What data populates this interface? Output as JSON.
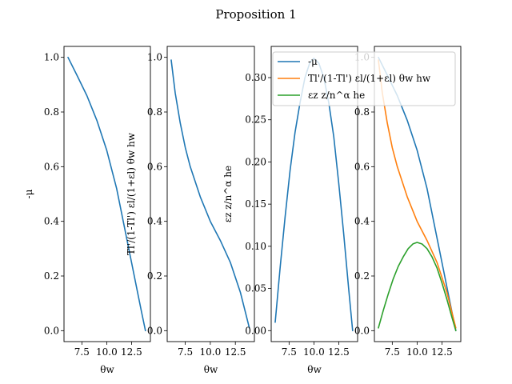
{
  "figure": {
    "title": "Proposition 1"
  },
  "chart_data": [
    {
      "type": "line",
      "xlabel": "θw",
      "ylabel": "-μ",
      "xlim": [
        5.7,
        14.4
      ],
      "ylim": [
        -0.04,
        1.04
      ],
      "xticks": [
        7.5,
        10.0,
        12.5
      ],
      "xticklabels": [
        "7.5",
        "10.0",
        "12.5"
      ],
      "yticks": [
        0.0,
        0.2,
        0.4,
        0.6,
        0.8,
        1.0
      ],
      "yticklabels": [
        "0.0",
        "0.2",
        "0.4",
        "0.6",
        "0.8",
        "1.0"
      ],
      "series": [
        {
          "name": "-μ",
          "color": "#1f77b4",
          "x": [
            6.1,
            7.0,
            8.0,
            9.0,
            10.0,
            11.0,
            12.0,
            12.5,
            13.0,
            13.5,
            13.9
          ],
          "y": [
            1.0,
            0.935,
            0.86,
            0.77,
            0.66,
            0.52,
            0.34,
            0.25,
            0.16,
            0.07,
            0.0
          ]
        }
      ]
    },
    {
      "type": "line",
      "xlabel": "θw",
      "ylabel": "Tl'/(1-Tl') εl/(1+εl) θw hw",
      "xlim": [
        5.7,
        14.4
      ],
      "ylim": [
        -0.04,
        1.04
      ],
      "xticks": [
        7.5,
        10.0,
        12.5
      ],
      "xticklabels": [
        "7.5",
        "10.0",
        "12.5"
      ],
      "yticks": [
        0.0,
        0.2,
        0.4,
        0.6,
        0.8,
        1.0
      ],
      "yticklabels": [
        "0.0",
        "0.2",
        "0.4",
        "0.6",
        "0.8",
        "1.0"
      ],
      "series": [
        {
          "name": "Tl'/(1-Tl') εl/(1+εl) θw hw",
          "color": "#1f77b4",
          "x": [
            6.1,
            6.5,
            7.0,
            7.5,
            8.0,
            9.0,
            10.0,
            11.0,
            12.0,
            13.0,
            13.9
          ],
          "y": [
            0.99,
            0.87,
            0.76,
            0.67,
            0.6,
            0.49,
            0.4,
            0.33,
            0.25,
            0.14,
            0.01
          ]
        }
      ]
    },
    {
      "type": "line",
      "xlabel": "θw",
      "ylabel": "εz z/n^α he",
      "xlim": [
        5.7,
        14.4
      ],
      "ylim": [
        -0.013,
        0.337
      ],
      "xticks": [
        7.5,
        10.0,
        12.5
      ],
      "xticklabels": [
        "7.5",
        "10.0",
        "12.5"
      ],
      "yticks": [
        0.0,
        0.05,
        0.1,
        0.15,
        0.2,
        0.25,
        0.3
      ],
      "yticklabels": [
        "0.00",
        "0.05",
        "0.10",
        "0.15",
        "0.20",
        "0.25",
        "0.30"
      ],
      "series": [
        {
          "name": "εz z/n^α he",
          "color": "#1f77b4",
          "x": [
            6.1,
            6.6,
            7.1,
            7.6,
            8.1,
            8.6,
            9.1,
            9.6,
            10.0,
            10.5,
            11.0,
            11.5,
            12.0,
            12.5,
            13.0,
            13.5,
            13.9
          ],
          "y": [
            0.01,
            0.075,
            0.135,
            0.19,
            0.235,
            0.27,
            0.3,
            0.318,
            0.323,
            0.317,
            0.3,
            0.27,
            0.23,
            0.175,
            0.115,
            0.05,
            0.0
          ]
        }
      ]
    },
    {
      "type": "line",
      "xlabel": "",
      "ylabel": "",
      "xlim": [
        5.7,
        14.4
      ],
      "ylim": [
        -0.04,
        1.04
      ],
      "xticks": [
        7.5,
        10.0,
        12.5
      ],
      "xticklabels": [
        "7.5",
        "10.0",
        "12.5"
      ],
      "yticks": [
        0.0,
        0.2,
        0.4,
        0.6,
        0.8,
        1.0
      ],
      "yticklabels": [
        "0.0",
        "0.2",
        "0.4",
        "0.6",
        "0.8",
        "1.0"
      ],
      "legend": {
        "placement": "top-right"
      },
      "series": [
        {
          "name": "-μ",
          "color": "#1f77b4",
          "x": [
            6.1,
            7.0,
            8.0,
            9.0,
            10.0,
            11.0,
            12.0,
            12.5,
            13.0,
            13.5,
            13.9
          ],
          "y": [
            1.0,
            0.935,
            0.86,
            0.77,
            0.66,
            0.52,
            0.34,
            0.25,
            0.16,
            0.07,
            0.0
          ]
        },
        {
          "name": "Tl'/(1-Tl') εl/(1+εl) θw hw",
          "color": "#ff7f0e",
          "x": [
            6.1,
            6.5,
            7.0,
            7.5,
            8.0,
            9.0,
            10.0,
            11.0,
            12.0,
            13.0,
            13.9
          ],
          "y": [
            0.99,
            0.87,
            0.76,
            0.67,
            0.6,
            0.49,
            0.4,
            0.33,
            0.25,
            0.14,
            0.01
          ]
        },
        {
          "name": "εz z/n^α he",
          "color": "#2ca02c",
          "x": [
            6.1,
            6.6,
            7.1,
            7.6,
            8.1,
            8.6,
            9.1,
            9.6,
            10.0,
            10.5,
            11.0,
            11.5,
            12.0,
            12.5,
            13.0,
            13.5,
            13.9
          ],
          "y": [
            0.01,
            0.075,
            0.135,
            0.19,
            0.235,
            0.27,
            0.3,
            0.318,
            0.323,
            0.317,
            0.3,
            0.27,
            0.23,
            0.175,
            0.115,
            0.05,
            0.0
          ]
        }
      ]
    }
  ]
}
